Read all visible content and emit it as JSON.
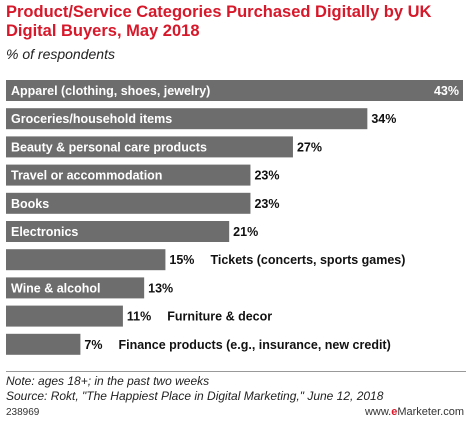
{
  "chart_data": {
    "type": "bar",
    "orientation": "horizontal",
    "title": "Product/Service Categories Purchased Digitally by UK Digital Buyers, May 2018",
    "subtitle": "% of respondents",
    "categories": [
      "Apparel (clothing, shoes, jewelry)",
      "Groceries/household items",
      "Beauty & personal care products",
      "Travel or accommodation",
      "Books",
      "Electronics",
      "Tickets (concerts, sports games)",
      "Wine & alcohol",
      "Furniture & decor",
      "Finance products (e.g., insurance, new credit)"
    ],
    "values": [
      43,
      34,
      27,
      23,
      23,
      21,
      15,
      13,
      11,
      7
    ],
    "value_labels": [
      "43%",
      "34%",
      "27%",
      "23%",
      "23%",
      "21%",
      "15%",
      "13%",
      "11%",
      "7%"
    ],
    "xlim": [
      0,
      43
    ],
    "grid": false,
    "legend": "none",
    "bar_color": "#6d6d6d"
  },
  "footer": {
    "note": "Note: ages 18+; in the past two weeks",
    "source": "Source: Rokt, \"The Happiest Place in Digital Marketing,\" June 12, 2018",
    "chart_id": "238969",
    "brand_prefix": "www.",
    "brand_mark": "e",
    "brand_suffix": "Marketer.com"
  },
  "colors": {
    "title": "#d7182a",
    "bar": "#6d6d6d",
    "bar_label_inside": "#ffffff",
    "bar_label_outside": "#111111"
  }
}
